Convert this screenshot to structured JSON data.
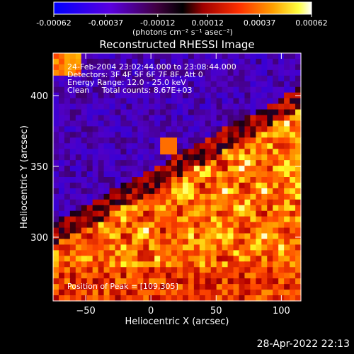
{
  "colorbar": {
    "tick_labels": [
      "-0.00062",
      "-0.00037",
      "-0.00012",
      "0.00012",
      "0.00037",
      "0.00062"
    ],
    "ticks": [
      -0.00062,
      -0.00037,
      -0.00012,
      0.00012,
      0.00037,
      0.00062
    ],
    "range": [
      -0.00062,
      0.00062
    ],
    "units_label": "(photons cm⁻² s⁻¹ asec⁻²)"
  },
  "plot": {
    "title": "Reconstructed RHESSI Image",
    "info_lines": [
      "24-Feb-2004 23:02:44.000 to 23:08:44.000",
      "Detectors: 3F 4F 5F 6F 7F 8F, Att 0",
      "Energy Range: 12.0 - 25.0 keV",
      "Clean     Total counts: 8.67E+03"
    ],
    "peak_label": "Position of Peak = [109,305]"
  },
  "chart_data": {
    "type": "heatmap",
    "title": "Reconstructed RHESSI Image",
    "xlabel": "Heliocentric X (arcsec)",
    "ylabel": "Heliocentric Y (arcsec)",
    "xlim": [
      -75,
      115
    ],
    "ylim": [
      255,
      430
    ],
    "xticks": [
      -50,
      0,
      50,
      100
    ],
    "yticks": [
      300,
      350,
      400
    ],
    "colorscale": [
      "#0000ff",
      "#6a00c8",
      "#200010",
      "#c80000",
      "#ff7800",
      "#ffff00",
      "#ffffff"
    ],
    "value_range": [
      -0.00062,
      0.00062
    ],
    "peak": [
      109,
      305
    ]
  },
  "footer": {
    "timestamp": "28-Apr-2022 22:13"
  }
}
